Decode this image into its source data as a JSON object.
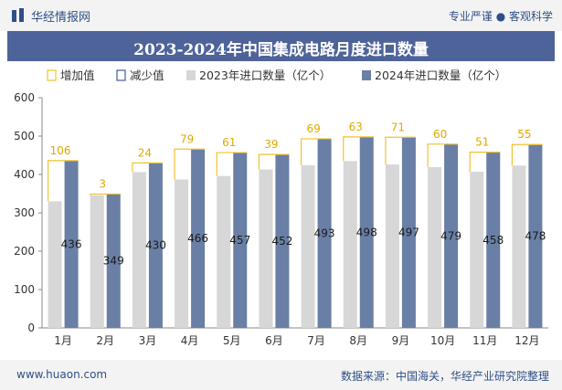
{
  "header": {
    "brand": "华经情报网",
    "tagline": "专业严谨 ● 客观科学"
  },
  "footer": {
    "website": "www.huaon.com",
    "source": "数据来源：中国海关，华经产业研究院整理"
  },
  "colors": {
    "increase": "#f2c12e",
    "decrease": "#3f5d99",
    "series2023": "#d7d7d7",
    "series2024": "#6a7fa5",
    "increase_label": "#e0a800",
    "header_bg": "#4e6399"
  },
  "chart_data": {
    "type": "bar",
    "title": "2023-2024年中国集成电路月度进口数量",
    "categories": [
      "1月",
      "2月",
      "3月",
      "4月",
      "5月",
      "6月",
      "7月",
      "8月",
      "9月",
      "10月",
      "11月",
      "12月"
    ],
    "series": [
      {
        "name": "2023年进口数量（亿个）",
        "values": [
          330,
          346,
          406,
          387,
          396,
          413,
          424,
          435,
          426,
          419,
          407,
          423
        ]
      },
      {
        "name": "2024年进口数量（亿个）",
        "values": [
          436,
          349,
          430,
          466,
          457,
          452,
          493,
          498,
          497,
          479,
          458,
          478
        ]
      }
    ],
    "change": {
      "increase_name": "增加值",
      "decrease_name": "减少值",
      "increase_values": [
        106,
        3,
        24,
        79,
        61,
        39,
        69,
        63,
        71,
        60,
        51,
        55
      ]
    },
    "ylim": [
      0,
      600
    ],
    "yticks": [
      0,
      100,
      200,
      300,
      400,
      500,
      600
    ],
    "legend_position": "top",
    "grid": false
  }
}
